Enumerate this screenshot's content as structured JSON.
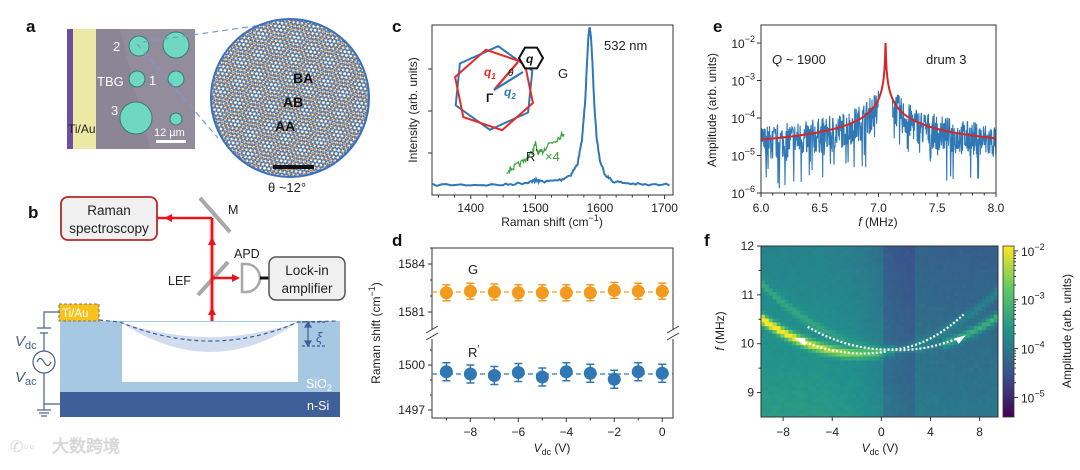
{
  "panels": {
    "a": {
      "label": "a",
      "micrograph_labels": {
        "drum2": "2",
        "drum1": "1",
        "drum3": "3",
        "tbg": "TBG",
        "contact": "Ti/Au",
        "scale": "12 µm"
      },
      "moire_labels": {
        "ba": "BA",
        "ab": "AB",
        "aa": "AA"
      },
      "twist_angle": "θ ~12°",
      "colors": {
        "layer1": "#e8872e",
        "layer2": "#3b7dc0",
        "drum": "#6fd8c0",
        "substrate": "#8c8596",
        "gold": "#ece9a6"
      }
    },
    "b": {
      "label": "b",
      "raman_box": [
        "Raman",
        "spectroscopy"
      ],
      "mirror": "M",
      "filter": "LEF",
      "detector": "APD",
      "lockin_box": [
        "Lock-in",
        "amplifier"
      ],
      "electrode": "Ti/Au",
      "vdc": "V",
      "vdc_sub": "dc",
      "vac": "V",
      "vac_sub": "ac",
      "deflection": "ξ",
      "oxide": "SiO",
      "oxide_sub": "2",
      "substrate": "n-Si",
      "colors": {
        "laser": "#e8141c",
        "oxide": "#a6c8e3",
        "silicon": "#3f5f99",
        "electrode": "#f7c21b"
      }
    }
  },
  "watermark": "大数跨境",
  "chart_data": [
    {
      "id": "c",
      "label": "c",
      "type": "line",
      "title": "",
      "xlabel": "Raman shift (cm",
      "xlabel_sup": "−1",
      "xlabel_end": ")",
      "ylabel": "Intensity (arb. units)",
      "xlim": [
        1340,
        1713
      ],
      "ylim": [
        0,
        1
      ],
      "xticks": [
        1400,
        1500,
        1600,
        1700
      ],
      "annotations": {
        "wavelength": "532 nm",
        "g_peak": "G",
        "r_peak": "R",
        "r_prime": "′",
        "r_scale": "×4"
      },
      "inset": {
        "q1": "q",
        "q1_sub": "1",
        "q2": "q",
        "q2_sub": "2",
        "q": "q",
        "gamma": "Γ",
        "theta": "θ"
      },
      "series": [
        {
          "name": "G spectrum",
          "color": "#2f78b5",
          "x": [
            1340,
            1400,
            1450,
            1480,
            1495,
            1500,
            1505,
            1520,
            1540,
            1555,
            1565,
            1572,
            1577,
            1580,
            1582,
            1584,
            1586,
            1588,
            1591,
            1595,
            1600,
            1608,
            1620,
            1640,
            1670,
            1713
          ],
          "y": [
            0.06,
            0.06,
            0.06,
            0.07,
            0.08,
            0.09,
            0.08,
            0.08,
            0.09,
            0.12,
            0.18,
            0.32,
            0.55,
            0.78,
            0.93,
            0.99,
            0.93,
            0.8,
            0.55,
            0.33,
            0.2,
            0.12,
            0.08,
            0.07,
            0.06,
            0.06
          ]
        },
        {
          "name": "R′ ×4",
          "color": "#3aa33a",
          "x": [
            1455,
            1465,
            1475,
            1485,
            1495,
            1500,
            1505,
            1512,
            1520,
            1530,
            1540,
            1545
          ],
          "y": [
            0.14,
            0.16,
            0.18,
            0.21,
            0.25,
            0.3,
            0.24,
            0.26,
            0.3,
            0.32,
            0.35,
            0.37
          ]
        }
      ]
    },
    {
      "id": "d",
      "label": "d",
      "type": "scatter",
      "xlabel": "V",
      "xlabel_sub": "dc",
      "xlabel_end": " (V)",
      "ylabel": "Raman shift (cm",
      "ylabel_sup": "−1",
      "ylabel_end": ")",
      "xlim": [
        -9.6,
        0.45
      ],
      "xticks": [
        -8,
        -6,
        -4,
        -2,
        0
      ],
      "xtick_labels": [
        "−8",
        "−6",
        "−4",
        "−2",
        "0"
      ],
      "ylim_upper": [
        1580.0,
        1585.0
      ],
      "ylim_lower": [
        1496.5,
        1501.7
      ],
      "yticks_upper": [
        1584,
        1581
      ],
      "yticks_lower": [
        1500,
        1497
      ],
      "series": [
        {
          "name": "G",
          "color": "#f39a1e",
          "mean": 1582.25,
          "x": [
            -9,
            -8,
            -7,
            -6,
            -5,
            -4,
            -3,
            -2,
            -1,
            0
          ],
          "y": [
            1582.2,
            1582.3,
            1582.25,
            1582.2,
            1582.2,
            1582.2,
            1582.2,
            1582.35,
            1582.3,
            1582.3
          ],
          "err": [
            0.5,
            0.5,
            0.5,
            0.5,
            0.5,
            0.5,
            0.5,
            0.5,
            0.5,
            0.5
          ]
        },
        {
          "name": "R",
          "name_sup": "′",
          "color": "#2f78b5",
          "mean": 1499.4,
          "x": [
            -9,
            -8,
            -7,
            -6,
            -5,
            -4,
            -3,
            -2,
            -1,
            0
          ],
          "y": [
            1499.55,
            1499.4,
            1499.3,
            1499.5,
            1499.2,
            1499.55,
            1499.45,
            1499.05,
            1499.55,
            1499.45
          ],
          "err": [
            0.6,
            0.6,
            0.6,
            0.6,
            0.6,
            0.6,
            0.6,
            0.6,
            0.6,
            0.6
          ]
        }
      ]
    },
    {
      "id": "e",
      "label": "e",
      "type": "line",
      "xlabel": "f",
      "xlabel_end": " (MHz)",
      "ylabel": "Amplitude (arb. units)",
      "xlim": [
        6.0,
        8.0
      ],
      "ylim_log10": [
        -6,
        -1.5
      ],
      "xticks": [
        6.0,
        6.5,
        7.0,
        7.5,
        8.0
      ],
      "xtick_labels": [
        "6.0",
        "6.5",
        "7.0",
        "7.5",
        "8.0"
      ],
      "yticks_log10": [
        -6,
        -5,
        -4,
        -3,
        -2
      ],
      "annotations": {
        "q": "Q",
        "q_value": " ~ 1900",
        "drum": "drum 3"
      },
      "series": [
        {
          "name": "measured",
          "color": "#2f78b5",
          "resonance_MHz": 7.06,
          "peak_amplitude": 0.01,
          "quality_factor": 1900,
          "background": 3e-05
        },
        {
          "name": "Lorentzian fit",
          "color": "#d62728",
          "resonance_MHz": 7.06,
          "peak_amplitude": 0.01,
          "quality_factor": 1900
        }
      ]
    },
    {
      "id": "f",
      "label": "f",
      "type": "heatmap",
      "xlabel": "V",
      "xlabel_sub": "dc",
      "xlabel_end": " (V)",
      "ylabel": "f",
      "ylabel_end": " (MHz)",
      "xlim": [
        -9.8,
        9.5
      ],
      "ylim": [
        8.5,
        12
      ],
      "xticks": [
        -8,
        -4,
        0,
        4,
        8
      ],
      "xtick_labels": [
        "−8",
        "−4",
        "0",
        "4",
        "8"
      ],
      "yticks": [
        9,
        10,
        11,
        12
      ],
      "colorbar": {
        "label": "Amplitude (arb. units)",
        "log10_range": [
          -5.4,
          -1.9
        ],
        "ticks_log10": [
          -5,
          -4,
          -3,
          -2
        ],
        "colormap": [
          "#440154",
          "#3b528b",
          "#21918c",
          "#5ec962",
          "#fde725"
        ]
      },
      "branches": [
        {
          "name": "sweep-down",
          "vertex_V": -1.5,
          "vertex_MHz": 9.8,
          "curvature": 0.0105
        },
        {
          "name": "sweep-up",
          "vertex_V": 1.5,
          "vertex_MHz": 9.87,
          "curvature": 0.0108
        }
      ]
    }
  ]
}
